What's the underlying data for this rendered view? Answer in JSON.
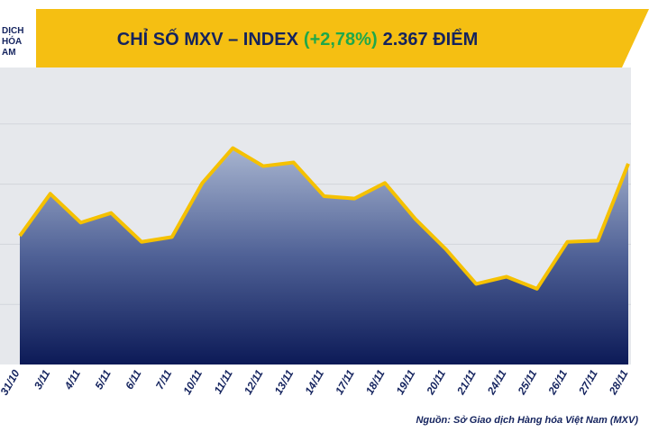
{
  "logo_text": [
    "DỊCH",
    "HÓA",
    "AM"
  ],
  "chart_data": {
    "type": "area",
    "title_parts": [
      "CHỈ SỐ MXV – INDEX",
      "(+2,78%)",
      "2.367 ĐIỂM"
    ],
    "title_colors": [
      "#14235e",
      "#1fa84a",
      "#14235e"
    ],
    "source": "Nguồn: Sở Giao dịch Hàng hóa Việt Nam (MXV)",
    "categories": [
      "31/10",
      "3/11",
      "4/11",
      "5/11",
      "6/11",
      "7/11",
      "10/11",
      "11/11",
      "12/11",
      "13/11",
      "14/11",
      "17/11",
      "18/11",
      "19/11",
      "20/11",
      "21/11",
      "24/11",
      "25/11",
      "26/11",
      "27/11",
      "28/11"
    ],
    "values": [
      2307,
      2342,
      2318,
      2326,
      2302,
      2306,
      2351,
      2380,
      2365,
      2368,
      2340,
      2338,
      2351,
      2321,
      2296,
      2267,
      2273,
      2263,
      2302,
      2303,
      2367
    ],
    "color": "#f5c100",
    "ylim": [
      2200,
      2447
    ],
    "yticks": [
      2250,
      2300,
      2350,
      2400
    ],
    "grid": true
  }
}
